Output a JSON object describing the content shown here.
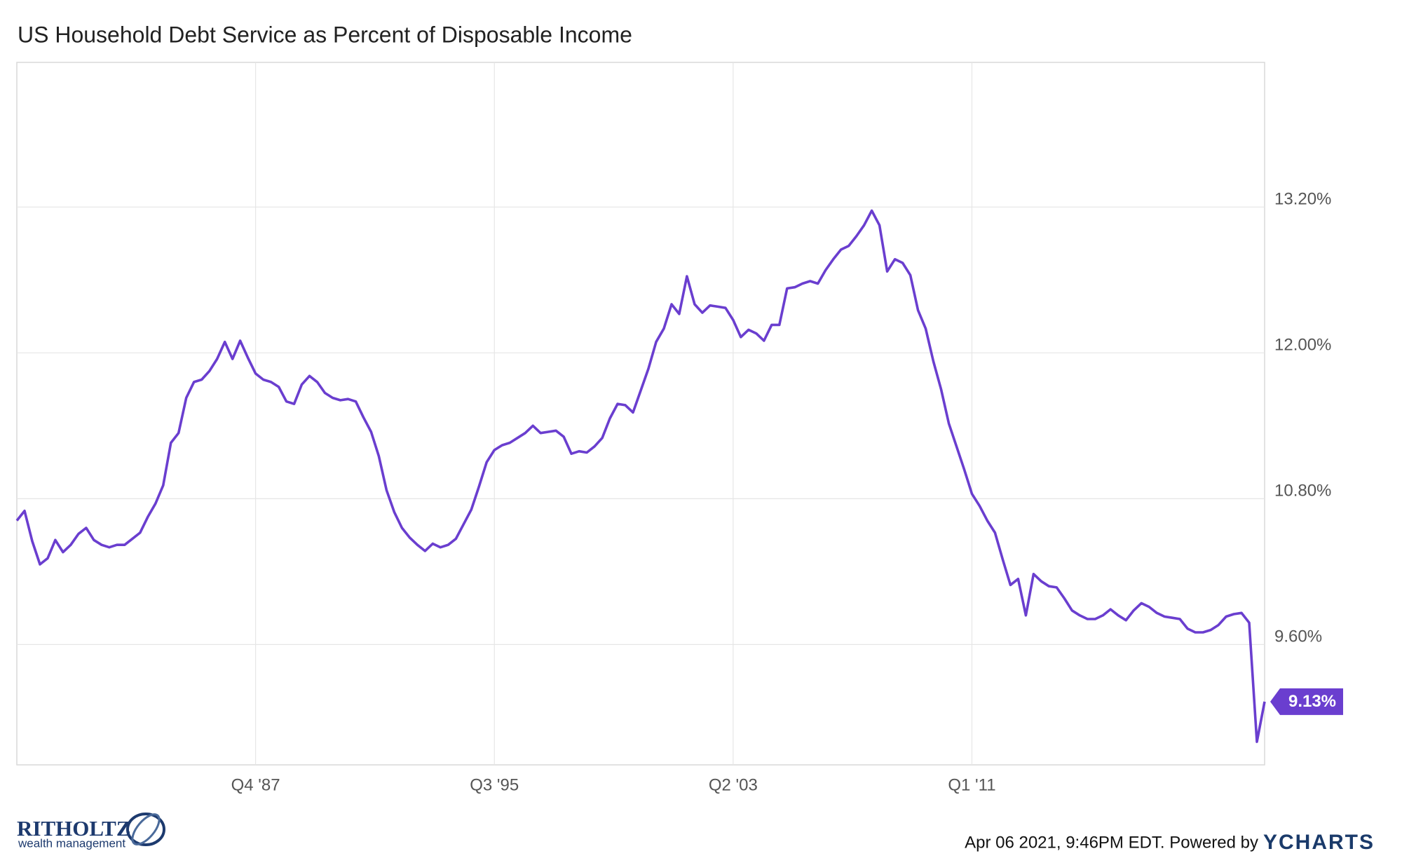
{
  "chart_data": {
    "type": "line",
    "title": "US Household Debt Service as Percent of Disposable Income",
    "categories": [
      null,
      null,
      null,
      null,
      null,
      null,
      null,
      null,
      null,
      null,
      null,
      null,
      null,
      null,
      null,
      null,
      null,
      null,
      null,
      null,
      null,
      null,
      null,
      null,
      null,
      null,
      null,
      null,
      null,
      null,
      null,
      "Q4 '87",
      null,
      null,
      null,
      null,
      null,
      null,
      null,
      null,
      null,
      null,
      null,
      null,
      null,
      null,
      null,
      null,
      null,
      null,
      null,
      null,
      null,
      null,
      null,
      null,
      null,
      null,
      null,
      null,
      null,
      null,
      "Q3 '95",
      null,
      null,
      null,
      null,
      null,
      null,
      null,
      null,
      null,
      null,
      null,
      null,
      null,
      null,
      null,
      null,
      null,
      null,
      null,
      null,
      null,
      null,
      null,
      null,
      null,
      null,
      null,
      null,
      null,
      null,
      "Q2 '03",
      null,
      null,
      null,
      null,
      null,
      null,
      null,
      null,
      null,
      null,
      null,
      null,
      null,
      null,
      null,
      null,
      null,
      null,
      null,
      null,
      null,
      null,
      null,
      null,
      null,
      null,
      null,
      null,
      null,
      null,
      "Q1 '11",
      null,
      null,
      null,
      null,
      null,
      null,
      null,
      null,
      null,
      null,
      null,
      null,
      null,
      null,
      null,
      null,
      null,
      null,
      null,
      null,
      null,
      null,
      null,
      null,
      null,
      null,
      null,
      null,
      null,
      null,
      null,
      null,
      null,
      null,
      null,
      null,
      null,
      null
    ],
    "series": [
      {
        "name": "US Household Debt Service as Percent of Disposable Income",
        "color": "#6a3ecf",
        "values": [
          10.62,
          10.7,
          10.45,
          10.26,
          10.31,
          10.46,
          10.36,
          10.42,
          10.51,
          10.56,
          10.46,
          10.42,
          10.4,
          10.42,
          10.42,
          10.47,
          10.52,
          10.65,
          10.76,
          10.91,
          11.26,
          11.34,
          11.63,
          11.76,
          11.78,
          11.85,
          11.95,
          12.09,
          11.95,
          12.1,
          11.96,
          11.83,
          11.78,
          11.76,
          11.72,
          11.6,
          11.58,
          11.74,
          11.81,
          11.76,
          11.67,
          11.63,
          11.61,
          11.62,
          11.6,
          11.47,
          11.35,
          11.15,
          10.87,
          10.69,
          10.56,
          10.48,
          10.42,
          10.37,
          10.43,
          10.4,
          10.42,
          10.47,
          10.59,
          10.71,
          10.9,
          11.1,
          11.2,
          11.24,
          11.26,
          11.3,
          11.34,
          11.4,
          11.34,
          11.35,
          11.36,
          11.31,
          11.17,
          11.19,
          11.18,
          11.23,
          11.3,
          11.46,
          11.58,
          11.57,
          11.51,
          11.69,
          11.87,
          12.09,
          12.2,
          12.4,
          12.32,
          12.63,
          12.4,
          12.33,
          12.39,
          12.38,
          12.37,
          12.27,
          12.13,
          12.19,
          12.16,
          12.1,
          12.23,
          12.23,
          12.53,
          12.54,
          12.57,
          12.59,
          12.57,
          12.68,
          12.77,
          12.85,
          12.88,
          12.96,
          13.05,
          13.17,
          13.05,
          12.67,
          12.77,
          12.74,
          12.64,
          12.35,
          12.2,
          11.93,
          11.7,
          11.42,
          11.23,
          11.04,
          10.84,
          10.74,
          10.62,
          10.52,
          10.3,
          10.09,
          10.14,
          9.84,
          10.18,
          10.12,
          10.08,
          10.07,
          9.98,
          9.88,
          9.84,
          9.81,
          9.81,
          9.84,
          9.89,
          9.84,
          9.8,
          9.88,
          9.94,
          9.91,
          9.86,
          9.83,
          9.82,
          9.81,
          9.73,
          9.7,
          9.7,
          9.72,
          9.76,
          9.83,
          9.85,
          9.86,
          9.78,
          8.8,
          9.13
        ],
        "value_labels": [
          null,
          null,
          null,
          null,
          null,
          null,
          null,
          null,
          null,
          null,
          null,
          null,
          null,
          null,
          null,
          null,
          null,
          null,
          null,
          null,
          null,
          null,
          null,
          null,
          null,
          null,
          null,
          null,
          null,
          null,
          null,
          null,
          null,
          null,
          null,
          null,
          null,
          null,
          null,
          null,
          null,
          null,
          null,
          null,
          null,
          null,
          null,
          null,
          null,
          null,
          null,
          null,
          null,
          null,
          null,
          null,
          null,
          null,
          null,
          null,
          null,
          null,
          null,
          null,
          null,
          null,
          null,
          null,
          null,
          null,
          null,
          null,
          null,
          null,
          null,
          null,
          null,
          null,
          null,
          null,
          null,
          null,
          null,
          null,
          null,
          null,
          null,
          null,
          null,
          null,
          null,
          null,
          null,
          null,
          null,
          null,
          null,
          null,
          null,
          null,
          null,
          null,
          null,
          null,
          null,
          null,
          null,
          null,
          null,
          null,
          null,
          null,
          null,
          null,
          null,
          null,
          null,
          null,
          null,
          null,
          null,
          null,
          null,
          null,
          null,
          null,
          null,
          null,
          null,
          null,
          null,
          null,
          null,
          null,
          null,
          null,
          null,
          null,
          null,
          null,
          null,
          null,
          null,
          null,
          null,
          null,
          null,
          null,
          null,
          null,
          null,
          null,
          null,
          null,
          null,
          null,
          null,
          null,
          null,
          null,
          null,
          null,
          "9.13%"
        ]
      }
    ],
    "ylim": [
      8.61,
      14.39
    ],
    "yticks": [
      {
        "value": 9.6,
        "label": "9.60%"
      },
      {
        "value": 10.8,
        "label": "10.80%"
      },
      {
        "value": 12.0,
        "label": "12.00%"
      },
      {
        "value": 13.2,
        "label": "13.20%"
      }
    ],
    "grid": true,
    "footer": {
      "timestamp": "Apr 06 2021, 9:46PM EDT. Powered by",
      "brand": "YCHARTS",
      "logo_name": "RITHOLTZ",
      "logo_subtitle": "wealth management"
    }
  }
}
